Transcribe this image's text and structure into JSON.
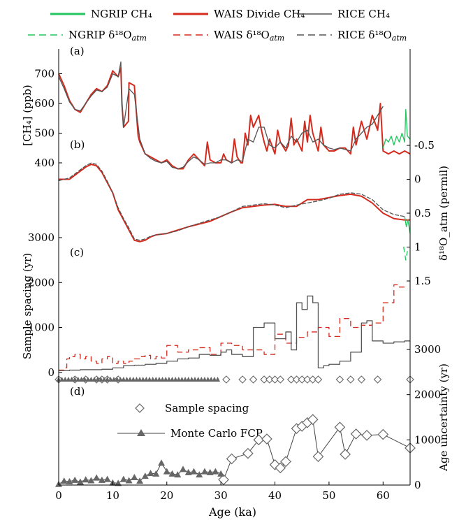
{
  "figure": {
    "legend": {
      "items": [
        {
          "label": "NGRIP CH₄",
          "color": "#22c55e",
          "dash": "solid"
        },
        {
          "label": "WAIS Divide CH₄",
          "color": "#d42b1e",
          "dash": "solid"
        },
        {
          "label": "RICE CH₄",
          "color": "#555555",
          "dash": "solid"
        },
        {
          "label": "NGRIP δ¹⁸O",
          "sub": "atm",
          "color": "#22c55e",
          "dash": "dashed"
        },
        {
          "label": "WAIS δ¹⁸O",
          "sub": "atm",
          "color": "#d42b1e",
          "dash": "dashed"
        },
        {
          "label": "RICE δ¹⁸O",
          "sub": "atm",
          "color": "#555555",
          "dash": "dashed"
        }
      ]
    },
    "panel_labels": [
      "(a)",
      "(b)",
      "(c)",
      "(d)"
    ],
    "x_axis": {
      "label": "Age (ka)",
      "ticks": [
        0,
        10,
        20,
        30,
        40,
        50,
        60
      ],
      "range": [
        0,
        65
      ]
    },
    "colors": {
      "ngrip": "#22c55e",
      "wais": "#d42b1e",
      "rice": "#555555"
    },
    "d_legend": [
      "Sample spacing",
      "Monte Carlo FCP"
    ]
  },
  "chart_data": [
    {
      "type": "line",
      "panel": "(a)",
      "ylabel": "[CH₄] (ppb)",
      "yticks": [
        400,
        500,
        600,
        700
      ],
      "ylim": [
        360,
        760
      ],
      "series": [
        {
          "name": "WAIS Divide CH₄",
          "x": [
            0,
            1,
            2,
            3,
            4,
            5,
            6,
            7,
            8,
            9,
            10,
            11,
            11.5,
            11.7,
            12,
            12.9,
            13,
            14,
            14.7,
            15,
            16,
            17,
            18,
            19,
            20,
            21,
            22,
            23,
            24,
            25,
            26,
            27,
            27.5,
            28,
            29,
            30,
            30.5,
            31,
            32,
            32.5,
            33,
            33.7,
            34,
            34.5,
            35,
            35.5,
            36,
            37,
            37.5,
            38,
            38.5,
            39,
            40,
            40.5,
            41,
            42,
            42.5,
            43,
            43.5,
            44,
            45,
            45.5,
            46,
            46.5,
            47,
            48,
            48.5,
            49,
            50,
            51,
            52,
            53,
            54,
            54.5,
            55,
            56,
            57,
            58,
            59,
            59.5,
            60,
            61,
            62,
            63,
            64,
            65
          ],
          "y": [
            700,
            660,
            610,
            580,
            570,
            600,
            630,
            650,
            640,
            660,
            710,
            690,
            720,
            600,
            520,
            540,
            670,
            660,
            490,
            470,
            430,
            420,
            410,
            400,
            410,
            390,
            380,
            380,
            410,
            430,
            410,
            390,
            470,
            410,
            400,
            400,
            430,
            410,
            400,
            480,
            420,
            400,
            400,
            500,
            460,
            560,
            520,
            560,
            510,
            470,
            440,
            480,
            430,
            510,
            470,
            440,
            460,
            550,
            460,
            480,
            440,
            540,
            470,
            560,
            500,
            440,
            520,
            460,
            440,
            440,
            450,
            450,
            430,
            520,
            460,
            540,
            480,
            560,
            510,
            600,
            440,
            430,
            440,
            430,
            440,
            430
          ]
        },
        {
          "name": "RICE CH₄",
          "x": [
            0,
            1,
            2,
            3,
            4,
            5,
            6,
            7,
            8,
            9,
            10,
            11,
            11.5,
            11.7,
            12,
            13,
            14,
            15,
            16,
            17,
            18,
            19,
            20,
            21,
            22,
            23,
            24,
            25,
            26,
            27,
            28,
            29,
            30,
            31,
            32,
            33,
            34,
            35,
            36,
            37,
            38,
            39,
            40,
            41,
            42,
            43,
            44,
            45,
            46,
            47,
            48,
            49,
            50,
            51,
            52,
            53,
            54,
            55,
            56,
            57,
            58,
            59,
            60
          ],
          "y": [
            690,
            650,
            605,
            580,
            575,
            600,
            625,
            645,
            640,
            655,
            700,
            690,
            740,
            590,
            520,
            650,
            630,
            480,
            430,
            415,
            405,
            400,
            405,
            385,
            380,
            385,
            405,
            420,
            410,
            395,
            400,
            400,
            410,
            410,
            400,
            410,
            405,
            480,
            470,
            520,
            520,
            460,
            450,
            470,
            450,
            490,
            470,
            500,
            510,
            470,
            480,
            460,
            450,
            445,
            450,
            445,
            440,
            480,
            500,
            520,
            530,
            560,
            590
          ]
        },
        {
          "name": "NGRIP CH₄",
          "x": [
            60,
            60.5,
            61,
            61.5,
            62,
            62.5,
            63,
            63.5,
            64,
            64.2,
            64.5,
            65
          ],
          "y": [
            450,
            480,
            470,
            490,
            460,
            490,
            470,
            500,
            470,
            580,
            490,
            480
          ]
        }
      ]
    },
    {
      "type": "line",
      "panel": "(b)",
      "ylabel": "δ¹⁸O_atm (permil)",
      "yticks": [
        -0.5,
        0,
        0.5,
        1,
        1.5
      ],
      "ylim": [
        1.5,
        -0.5
      ],
      "series": [
        {
          "name": "WAIS δ¹⁸O",
          "x": [
            0,
            2,
            4,
            5,
            6,
            7,
            8,
            9,
            10,
            11,
            12,
            13,
            14,
            15,
            16,
            17,
            18,
            20,
            22,
            24,
            26,
            28,
            30,
            32,
            34,
            36,
            38,
            40,
            42,
            44,
            46,
            48,
            50,
            52,
            54,
            56,
            58,
            60,
            62,
            64,
            65
          ],
          "y": [
            0,
            0,
            -0.12,
            -0.18,
            -0.22,
            -0.2,
            -0.1,
            0.05,
            0.2,
            0.45,
            0.6,
            0.75,
            0.9,
            0.92,
            0.9,
            0.85,
            0.82,
            0.8,
            0.75,
            0.7,
            0.66,
            0.62,
            0.55,
            0.48,
            0.42,
            0.4,
            0.38,
            0.37,
            0.4,
            0.4,
            0.3,
            0.3,
            0.27,
            0.24,
            0.22,
            0.25,
            0.35,
            0.5,
            0.58,
            0.6,
            0.6
          ]
        },
        {
          "name": "RICE δ¹⁸O",
          "x": [
            0,
            2,
            4,
            5,
            6,
            7,
            8,
            9,
            10,
            11,
            12,
            13,
            14,
            15,
            16,
            17,
            18,
            20,
            22,
            24,
            26,
            28,
            30,
            32,
            34,
            36,
            38,
            40,
            42,
            44,
            46,
            48,
            50,
            52,
            54,
            56,
            58,
            60,
            62,
            64
          ],
          "y": [
            0.02,
            -0.02,
            -0.14,
            -0.2,
            -0.24,
            -0.22,
            -0.12,
            0.03,
            0.2,
            0.42,
            0.58,
            0.72,
            0.88,
            0.9,
            0.88,
            0.84,
            0.82,
            0.8,
            0.76,
            0.7,
            0.65,
            0.6,
            0.55,
            0.48,
            0.4,
            0.38,
            0.36,
            0.38,
            0.42,
            0.38,
            0.35,
            0.32,
            0.28,
            0.22,
            0.2,
            0.22,
            0.3,
            0.45,
            0.52,
            0.55
          ]
        },
        {
          "name": "NGRIP δ¹⁸O",
          "x": [
            64,
            64.3,
            64.6,
            65
          ],
          "y": [
            0.55,
            0.7,
            0.6,
            0.8
          ]
        }
      ]
    },
    {
      "type": "line",
      "panel": "(c)",
      "ylabel": "Sample spacing (yr)",
      "yticks": [
        0,
        1000,
        2000,
        3000
      ],
      "ylim": [
        -50,
        3000
      ],
      "series": [
        {
          "name": "WAIS",
          "style": "dashed-step",
          "x": [
            0,
            1,
            1.5,
            2,
            3,
            4,
            5,
            6,
            7,
            8,
            9,
            10,
            11,
            12,
            13,
            14,
            15,
            16,
            17,
            18,
            19,
            20,
            22,
            24,
            26,
            28,
            30,
            32,
            34,
            36,
            38,
            40,
            42,
            44,
            46,
            48,
            50,
            52,
            54,
            56,
            58,
            60,
            62,
            63,
            64
          ],
          "y": [
            50,
            100,
            300,
            350,
            400,
            300,
            350,
            250,
            200,
            300,
            350,
            200,
            250,
            200,
            250,
            300,
            350,
            380,
            300,
            350,
            320,
            600,
            450,
            500,
            550,
            400,
            650,
            600,
            500,
            500,
            400,
            850,
            650,
            780,
            900,
            1000,
            800,
            1200,
            1000,
            1050,
            1100,
            1550,
            1950,
            1900,
            1900
          ]
        },
        {
          "name": "RICE",
          "style": "solid-step",
          "x": [
            0,
            2,
            4,
            6,
            8,
            10,
            12,
            14,
            16,
            18,
            20,
            22,
            24,
            26,
            28,
            30,
            31,
            32,
            34,
            36,
            38,
            40,
            42,
            43,
            44,
            45,
            46,
            47,
            48,
            49,
            50,
            52,
            54,
            56,
            57,
            58,
            60,
            62,
            64,
            65
          ],
          "y": [
            40,
            50,
            60,
            60,
            70,
            100,
            150,
            160,
            180,
            200,
            250,
            300,
            320,
            400,
            380,
            450,
            500,
            400,
            350,
            1000,
            1100,
            750,
            900,
            500,
            1550,
            1400,
            1700,
            1550,
            100,
            150,
            180,
            250,
            450,
            1100,
            1150,
            700,
            650,
            680,
            700,
            700
          ]
        },
        {
          "name": "NGRIP",
          "style": "dashed",
          "x": [
            63.8,
            64.2,
            64.5
          ],
          "y": [
            2800,
            2500,
            2700
          ]
        }
      ]
    },
    {
      "type": "scatter",
      "panel": "(d)",
      "ylabel": "Age uncertainty (yr)",
      "yticks": [
        0,
        1000,
        2000,
        3000
      ],
      "ylim": [
        0,
        3000
      ],
      "diamond_row_x": [
        0,
        3,
        5,
        7,
        8,
        9,
        11,
        31,
        34,
        36,
        38,
        39,
        40,
        41,
        43,
        44,
        45,
        46,
        47,
        48,
        52,
        54,
        56,
        59,
        65
      ],
      "series": [
        {
          "name": "Sample spacing",
          "x": [
            30.5,
            32,
            35,
            37,
            38.5,
            40,
            41,
            42,
            44,
            45,
            46,
            47,
            48,
            52,
            53,
            55,
            57,
            60,
            65
          ],
          "y": [
            120,
            580,
            700,
            1000,
            1020,
            450,
            380,
            520,
            1250,
            1300,
            1380,
            1450,
            630,
            1280,
            680,
            1130,
            1100,
            1120,
            820
          ]
        },
        {
          "name": "Monte Carlo FCP",
          "x": [
            0,
            1,
            2,
            3,
            4,
            5,
            6,
            7,
            8,
            9,
            10,
            11,
            12,
            13,
            14,
            15,
            16,
            17,
            18,
            19,
            20,
            21,
            22,
            23,
            24,
            25,
            26,
            27,
            28,
            29,
            30
          ],
          "y": [
            20,
            90,
            80,
            110,
            70,
            120,
            100,
            160,
            110,
            130,
            50,
            40,
            130,
            100,
            170,
            90,
            200,
            260,
            250,
            490,
            300,
            250,
            230,
            350,
            280,
            300,
            230,
            300,
            280,
            300,
            250
          ]
        }
      ]
    }
  ]
}
